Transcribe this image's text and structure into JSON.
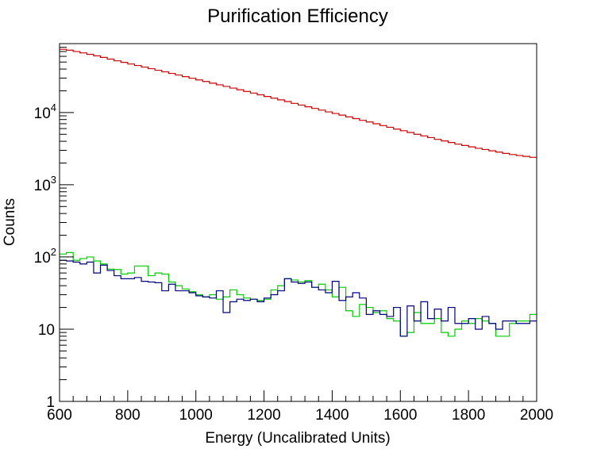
{
  "chart_data": {
    "type": "line",
    "title": "Purification Efficiency",
    "xlabel": "Energy (Uncalibrated Units)",
    "ylabel": "Counts",
    "xlim": [
      600,
      2000
    ],
    "ylim": [
      1,
      90000
    ],
    "y_scale": "log",
    "grid": false,
    "legend": "none",
    "x_ticks": [
      {
        "value": 600,
        "label": "600"
      },
      {
        "value": 800,
        "label": "800"
      },
      {
        "value": 1000,
        "label": "1000"
      },
      {
        "value": 1200,
        "label": "1200"
      },
      {
        "value": 1400,
        "label": "1400"
      },
      {
        "value": 1600,
        "label": "1600"
      },
      {
        "value": 1800,
        "label": "1800"
      },
      {
        "value": 2000,
        "label": "2000"
      }
    ],
    "y_ticks": [
      {
        "value": 1,
        "base": "1",
        "exp": ""
      },
      {
        "value": 10,
        "base": "10",
        "exp": ""
      },
      {
        "value": 100,
        "base": "10",
        "exp": "2"
      },
      {
        "value": 1000,
        "base": "10",
        "exp": "3"
      },
      {
        "value": 10000,
        "base": "10",
        "exp": "4"
      }
    ],
    "bin_edges": [
      600,
      620,
      640,
      660,
      680,
      700,
      720,
      740,
      760,
      780,
      800,
      820,
      840,
      860,
      880,
      900,
      920,
      940,
      960,
      980,
      1000,
      1020,
      1040,
      1060,
      1080,
      1100,
      1120,
      1140,
      1160,
      1180,
      1200,
      1220,
      1240,
      1260,
      1280,
      1300,
      1320,
      1340,
      1360,
      1380,
      1400,
      1420,
      1440,
      1460,
      1480,
      1500,
      1520,
      1540,
      1560,
      1580,
      1600,
      1620,
      1640,
      1660,
      1680,
      1700,
      1720,
      1740,
      1760,
      1780,
      1800,
      1820,
      1840,
      1860,
      1880,
      1900,
      1920,
      1940,
      1960,
      1980,
      2000
    ],
    "series": [
      {
        "color": "#cc0000",
        "values": [
          75000,
          73000,
          70000,
          67000,
          64000,
          61000,
          58000,
          55000,
          52000,
          49500,
          47000,
          44800,
          42600,
          40500,
          38500,
          36600,
          34800,
          33100,
          31400,
          29800,
          28300,
          26900,
          25500,
          24200,
          23000,
          21800,
          20700,
          19600,
          18600,
          17600,
          16700,
          15800,
          15000,
          14200,
          13400,
          12700,
          12000,
          11400,
          10800,
          10200,
          9700,
          9200,
          8700,
          8250,
          7800,
          7400,
          7000,
          6600,
          6250,
          5900,
          5600,
          5300,
          5000,
          4750,
          4500,
          4250,
          4050,
          3850,
          3650,
          3500,
          3350,
          3200,
          3080,
          2950,
          2830,
          2720,
          2620,
          2540,
          2470,
          2400
        ]
      },
      {
        "color": "#00cc00",
        "values": [
          110,
          115,
          90,
          95,
          100,
          88,
          80,
          68,
          67,
          58,
          60,
          75,
          75,
          55,
          60,
          58,
          45,
          40,
          36,
          33,
          30,
          28,
          30,
          26,
          28,
          35,
          30,
          27,
          26,
          25,
          26,
          35,
          40,
          50,
          48,
          45,
          47,
          38,
          42,
          35,
          28,
          38,
          18,
          15,
          22,
          20,
          17,
          18,
          14,
          13,
          8,
          9,
          17,
          12,
          12,
          14,
          9,
          8,
          10,
          13,
          12,
          14,
          13,
          12,
          8,
          8,
          12,
          13,
          13,
          16
        ]
      },
      {
        "color": "#000080",
        "values": [
          90,
          88,
          85,
          80,
          85,
          60,
          77,
          65,
          55,
          50,
          50,
          52,
          46,
          45,
          44,
          34,
          42,
          34,
          34,
          32,
          29,
          28,
          27,
          34,
          17,
          24,
          26,
          25,
          26,
          24,
          27,
          30,
          34,
          50,
          45,
          43,
          45,
          38,
          35,
          32,
          46,
          25,
          28,
          32,
          27,
          16,
          18,
          16,
          15,
          20,
          8,
          21,
          13,
          24,
          14,
          19,
          13,
          20,
          12,
          12,
          14,
          10,
          15,
          12,
          10,
          13,
          13,
          12,
          12,
          13
        ]
      }
    ]
  }
}
